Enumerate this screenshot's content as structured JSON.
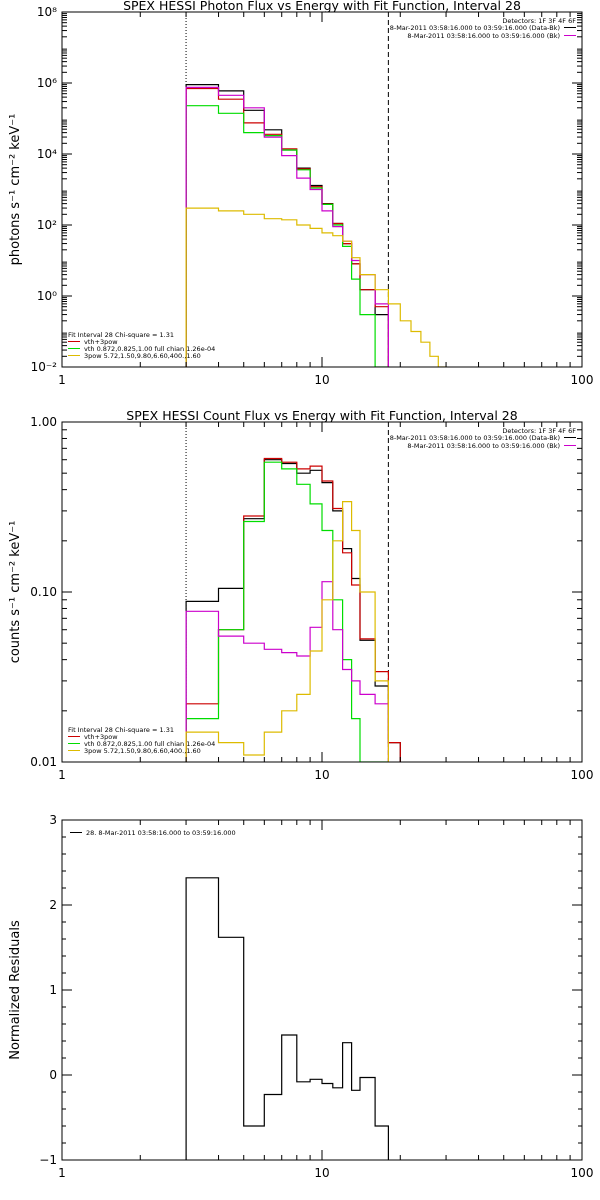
{
  "chart_data": [
    {
      "type": "line",
      "title": "SPEX HESSI Photon Flux vs Energy with Fit Function, Interval 28",
      "ylabel": "photons s⁻¹ cm⁻² keV⁻¹",
      "xlabel": "",
      "xscale": "log",
      "yscale": "log",
      "xlim": [
        1,
        100
      ],
      "ylim": [
        0.01,
        100000000
      ],
      "xticks": [
        1,
        10,
        100
      ],
      "xtick_labels": [
        "1",
        "10",
        "100"
      ],
      "yticks": [
        0.01,
        1,
        100,
        10000,
        1000000,
        100000000
      ],
      "ytick_labels": [
        "10⁻²",
        "10⁰",
        "10²",
        "10⁴",
        "10⁶",
        "10⁸"
      ],
      "vlines": [
        {
          "x": 3,
          "style": "dotted"
        },
        {
          "x": 18,
          "style": "dashed"
        }
      ],
      "header_text": {
        "line1": "Detectors: 1F 3F 4F 6F",
        "line2": "8-Mar-2011 03:58:16.000 to 03:59:16.000 (Data-Bk)",
        "line3": "8-Mar-2011 03:58:16.000 to 03:59:16.000 (Bk)"
      },
      "header_colors": [
        "#000000",
        "#cc00cc"
      ],
      "legend_text": {
        "title": "Fit Interval 28   Chi-square = 1.31",
        "entries": [
          "vth+3pow",
          "vth 0.872,0.825,1.00  full chian 1.26e-04",
          "3pow 5.72,1.50,9.80,6.60,400.,1.60"
        ]
      },
      "legend_colors": [
        "#cc0000",
        "#00dd00",
        "#ddbb00"
      ],
      "series": [
        {
          "color": "#000000",
          "edges": [
            3,
            4,
            5,
            6,
            7,
            8,
            9,
            10,
            11,
            12,
            13,
            14,
            16,
            18
          ],
          "values": [
            900000,
            600000,
            170000,
            48000,
            13000,
            4000,
            1300,
            400,
            110,
            30,
            8,
            1.5,
            0.3
          ]
        },
        {
          "color": "#cc0000",
          "edges": [
            3,
            4,
            5,
            6,
            7,
            8,
            9,
            10,
            11,
            12,
            13,
            14,
            16,
            18
          ],
          "values": [
            700000,
            350000,
            75000,
            36000,
            14000,
            3800,
            1200,
            390,
            110,
            30,
            8,
            1.5,
            0.5
          ]
        },
        {
          "color": "#00dd00",
          "edges": [
            3,
            4,
            5,
            6,
            7,
            8,
            9,
            10,
            11,
            12,
            13,
            14,
            16,
            18
          ],
          "values": [
            230000,
            140000,
            40000,
            33000,
            13000,
            3600,
            1100,
            380,
            100,
            25,
            3,
            0.3,
            0.01
          ]
        },
        {
          "color": "#cc00cc",
          "edges": [
            3,
            4,
            5,
            6,
            7,
            8,
            9,
            10,
            11,
            12,
            13,
            14,
            16,
            18
          ],
          "values": [
            750000,
            450000,
            200000,
            30000,
            9000,
            2100,
            1000,
            250,
            90,
            35,
            10,
            4,
            0.6
          ]
        },
        {
          "color": "#ddbb00",
          "edges": [
            3,
            4,
            5,
            6,
            7,
            8,
            9,
            10,
            11,
            12,
            13,
            14,
            16,
            18,
            20,
            22,
            24,
            26,
            28,
            30
          ],
          "values": [
            300,
            250,
            200,
            150,
            140,
            100,
            80,
            60,
            50,
            35,
            12,
            4,
            1.5,
            0.6,
            0.2,
            0.1,
            0.05,
            0.02,
            0.01
          ]
        }
      ]
    },
    {
      "type": "line",
      "title": "SPEX HESSI Count Flux vs Energy with Fit Function, Interval 28",
      "ylabel": "counts s⁻¹ cm⁻² keV⁻¹",
      "xlabel": "",
      "xscale": "log",
      "yscale": "log",
      "xlim": [
        1,
        100
      ],
      "ylim": [
        0.01,
        1
      ],
      "xticks": [
        1,
        10,
        100
      ],
      "xtick_labels": [
        "1",
        "10",
        "100"
      ],
      "yticks": [
        0.01,
        0.1,
        1
      ],
      "ytick_labels": [
        "0.01",
        "0.10",
        "1.00"
      ],
      "vlines": [
        {
          "x": 3,
          "style": "dotted"
        },
        {
          "x": 18,
          "style": "dashed"
        }
      ],
      "header_text": {
        "line1": "Detectors: 1F 3F 4F 6F",
        "line2": "8-Mar-2011 03:58:16.000 to 03:59:16.000 (Data-Bk)",
        "line3": "8-Mar-2011 03:58:16.000 to 03:59:16.000 (Bk)"
      },
      "header_colors": [
        "#000000",
        "#cc00cc"
      ],
      "legend_text": {
        "title": "Fit Interval 28   Chi-square = 1.31",
        "entries": [
          "vth+3pow",
          "vth 0.872,0.825,1.00  full chian 1.26e-04",
          "3pow 5.72,1.50,9.80,6.60,400.,1.60"
        ]
      },
      "legend_colors": [
        "#cc0000",
        "#00dd00",
        "#ddbb00"
      ],
      "series": [
        {
          "color": "#000000",
          "edges": [
            3,
            4,
            5,
            6,
            7,
            8,
            9,
            10,
            11,
            12,
            13,
            14,
            16,
            18,
            20
          ],
          "values": [
            0.088,
            0.105,
            0.27,
            0.6,
            0.57,
            0.5,
            0.52,
            0.44,
            0.3,
            0.18,
            0.12,
            0.052,
            0.028,
            0.013
          ]
        },
        {
          "color": "#cc0000",
          "edges": [
            3,
            4,
            5,
            6,
            7,
            8,
            9,
            10,
            11,
            12,
            13,
            14,
            16,
            18,
            20
          ],
          "values": [
            0.022,
            0.06,
            0.28,
            0.61,
            0.58,
            0.53,
            0.55,
            0.45,
            0.31,
            0.17,
            0.11,
            0.053,
            0.034,
            0.013
          ]
        },
        {
          "color": "#00dd00",
          "edges": [
            3,
            4,
            5,
            6,
            7,
            8,
            9,
            10,
            11,
            12,
            13,
            14,
            16,
            18
          ],
          "values": [
            0.018,
            0.06,
            0.26,
            0.58,
            0.53,
            0.43,
            0.33,
            0.23,
            0.09,
            0.04,
            0.018,
            0.01,
            0.01
          ]
        },
        {
          "color": "#cc00cc",
          "edges": [
            3,
            4,
            5,
            6,
            7,
            8,
            9,
            10,
            11,
            12,
            13,
            14,
            16,
            18
          ],
          "values": [
            0.077,
            0.055,
            0.05,
            0.046,
            0.044,
            0.042,
            0.062,
            0.115,
            0.06,
            0.035,
            0.03,
            0.025,
            0.022
          ]
        },
        {
          "color": "#ddbb00",
          "edges": [
            3,
            4,
            5,
            6,
            7,
            8,
            9,
            10,
            11,
            12,
            13,
            14,
            16,
            18
          ],
          "values": [
            0.015,
            0.013,
            0.011,
            0.015,
            0.02,
            0.025,
            0.045,
            0.09,
            0.2,
            0.34,
            0.23,
            0.1,
            0.03
          ]
        }
      ]
    },
    {
      "type": "line",
      "title": "",
      "ylabel": "Normalized Residuals",
      "xlabel": "",
      "xscale": "log",
      "yscale": "linear",
      "xlim": [
        1,
        100
      ],
      "ylim": [
        -1,
        3
      ],
      "xticks": [
        1,
        10,
        100
      ],
      "xtick_labels": [
        "1",
        "10",
        "100"
      ],
      "yticks": [
        -1,
        0,
        1,
        2,
        3
      ],
      "ytick_labels": [
        "−1",
        "0",
        "1",
        "2",
        "3"
      ],
      "vlines": [],
      "legend_text": {
        "title": "",
        "entries": [
          "28.  8-Mar-2011 03:58:16.000 to 03:59:16.000"
        ]
      },
      "legend_colors": [
        "#000000"
      ],
      "series": [
        {
          "color": "#000000",
          "edges": [
            3,
            4,
            5,
            6,
            7,
            8,
            9,
            10,
            11,
            12,
            13,
            14,
            16,
            18
          ],
          "values": [
            2.32,
            1.62,
            -0.6,
            -0.23,
            0.47,
            -0.08,
            -0.05,
            -0.1,
            -0.15,
            0.38,
            -0.18,
            -0.03,
            -0.6
          ]
        }
      ]
    }
  ]
}
